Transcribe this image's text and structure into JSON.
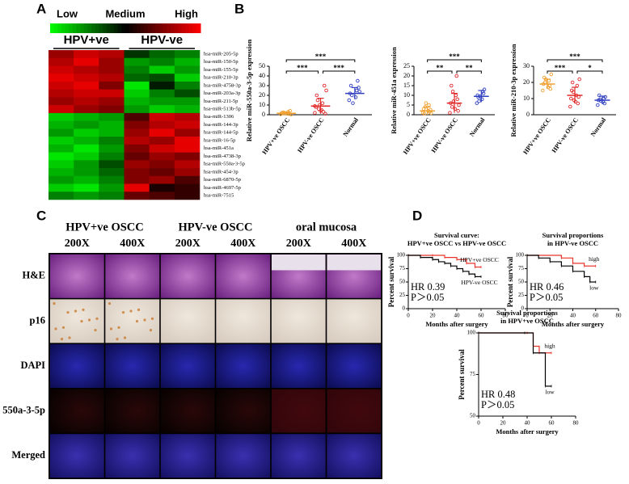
{
  "panel_labels": [
    "A",
    "B",
    "C",
    "D"
  ],
  "chart_data": [
    {
      "type": "heatmap",
      "scale_labels": [
        "Low",
        "Medium",
        "High"
      ],
      "groups": [
        "HPV+ve",
        "HPV-ve"
      ],
      "colors": [
        "#00ff00",
        "#000000",
        "#ff0000"
      ],
      "zlim": [
        -1,
        1
      ],
      "rows": [
        "hsa-miR-205-5p",
        "hsa-miR-150-5p",
        "hsa-miR-155-5p",
        "hsa-miR-210-3p",
        "hsa-miR-4758-3p",
        "hsa-miR-203a-3p",
        "hsa-miR-211-5p",
        "hsa-miR-513b-5p",
        "hsa-miR-1306",
        "hsa-miR-144-3p",
        "hsa-miR-144-5p",
        "hsa-miR-16-5p",
        "hsa-miR-451a",
        "hsa-miR-4738-3p",
        "hsa-miR-550a-3-5p",
        "hsa-miR-454-3p",
        "hsa-miR-6870-5p",
        "hsa-miR-4697-5p",
        "hsa-miR-7515"
      ],
      "values": [
        [
          0.6,
          0.8,
          0.7,
          -0.2,
          -0.4,
          -0.5
        ],
        [
          0.7,
          0.9,
          0.6,
          -0.6,
          -0.5,
          -0.7
        ],
        [
          0.8,
          0.7,
          0.6,
          -0.5,
          -0.8,
          -0.6
        ],
        [
          0.9,
          0.8,
          0.7,
          -0.4,
          -0.3,
          -0.8
        ],
        [
          0.8,
          0.9,
          0.5,
          -0.9,
          -0.1,
          -0.5
        ],
        [
          0.7,
          0.8,
          0.8,
          -0.8,
          -0.5,
          -0.3
        ],
        [
          0.6,
          0.7,
          0.6,
          -0.7,
          -0.6,
          -0.6
        ],
        [
          0.8,
          0.6,
          0.5,
          -0.6,
          -0.8,
          -0.7
        ],
        [
          -0.8,
          -0.7,
          -0.6,
          0.3,
          0.8,
          0.7
        ],
        [
          -0.7,
          -0.6,
          -0.7,
          0.5,
          0.7,
          0.8
        ],
        [
          -0.6,
          -0.8,
          -0.7,
          0.6,
          0.9,
          0.6
        ],
        [
          -0.8,
          -0.7,
          -0.5,
          0.7,
          0.6,
          0.9
        ],
        [
          -0.7,
          -0.9,
          -0.6,
          0.5,
          0.8,
          0.9
        ],
        [
          -0.9,
          -0.8,
          -0.5,
          0.4,
          0.6,
          0.5
        ],
        [
          -0.8,
          -0.6,
          -0.3,
          0.6,
          0.5,
          0.7
        ],
        [
          -0.7,
          -0.6,
          -0.4,
          0.5,
          0.4,
          0.6
        ],
        [
          -0.6,
          -0.7,
          -0.5,
          0.5,
          0.6,
          0.3
        ],
        [
          -0.8,
          -0.9,
          -0.6,
          0.9,
          0.1,
          0.2
        ],
        [
          -0.5,
          -0.6,
          -0.5,
          0.4,
          0.3,
          0.2
        ]
      ]
    },
    {
      "type": "dot",
      "ylabel": "Relative miR-550a-3-5p expression",
      "categories": [
        "HPV+ve OSCC",
        "HPV-ve OSCC",
        "Normal"
      ],
      "colors": [
        "#f0a030",
        "#e02828",
        "#3040c0"
      ],
      "points": [
        [
          0.5,
          1,
          2,
          3,
          1.5,
          0.8,
          2.5,
          4,
          1.2,
          0.3
        ],
        [
          2,
          5,
          8,
          12,
          20,
          3,
          15,
          30,
          6,
          1,
          10,
          25,
          4,
          9
        ],
        [
          15,
          18,
          22,
          25,
          30,
          35,
          20,
          28,
          12,
          24
        ]
      ],
      "means": [
        1.5,
        9,
        22
      ],
      "sds": [
        1.5,
        8,
        6
      ],
      "ylim": [
        0,
        50
      ],
      "yticks": [
        0,
        10,
        20,
        30,
        40,
        50
      ],
      "significance": [
        "***",
        "***",
        "***"
      ]
    },
    {
      "type": "dot",
      "ylabel": "Relative miR-451a expression",
      "categories": [
        "HPV+ve OSCC",
        "HPV-ve OSCC",
        "Normal"
      ],
      "colors": [
        "#f0a030",
        "#e02828",
        "#3040c0"
      ],
      "points": [
        [
          1,
          2,
          3,
          5,
          0.5,
          1.5,
          4,
          2.5,
          6,
          0.8
        ],
        [
          1,
          3,
          6,
          10,
          15,
          20,
          4,
          8,
          12,
          2,
          7,
          5
        ],
        [
          6,
          8,
          10,
          12,
          9,
          11,
          7,
          13,
          9.5
        ]
      ],
      "means": [
        2,
        6,
        9.5
      ],
      "sds": [
        2,
        5,
        3
      ],
      "ylim": [
        0,
        25
      ],
      "yticks": [
        0,
        5,
        10,
        15,
        20,
        25
      ],
      "significance": [
        "***",
        "**",
        "**"
      ]
    },
    {
      "type": "dot",
      "ylabel": "Relative miR-210-3p expression",
      "categories": [
        "HPV+ve OSCC",
        "HPV-ve OSCC",
        "Normal"
      ],
      "colors": [
        "#f0a030",
        "#e02828",
        "#3040c0"
      ],
      "points": [
        [
          15,
          17,
          19,
          21,
          23,
          18,
          20,
          16,
          22,
          25
        ],
        [
          5,
          8,
          10,
          12,
          15,
          18,
          20,
          7,
          14,
          11,
          9,
          22
        ],
        [
          6,
          8,
          9,
          10,
          12,
          7,
          9.5,
          11,
          8.5
        ]
      ],
      "means": [
        19,
        12,
        9
      ],
      "sds": [
        3,
        5,
        2.5
      ],
      "ylim": [
        0,
        30
      ],
      "yticks": [
        0,
        10,
        20,
        30
      ],
      "significance": [
        "***",
        "***",
        "*"
      ]
    },
    {
      "type": "survival",
      "title": [
        "Survival curve:",
        "HPV+ve OSCC vs HPV-ve OSCC"
      ],
      "xlabel": "Months after surgery",
      "ylabel": "Percent survival",
      "xlim": [
        0,
        80
      ],
      "xticks": [
        0,
        20,
        40,
        60,
        80
      ],
      "ylim": [
        0,
        100
      ],
      "yticks": [
        0,
        25,
        50,
        75,
        100
      ],
      "annotations": [
        "HR 0.39",
        "P＞0.05"
      ],
      "series": [
        {
          "name": "HPV+ve OSCC",
          "color": "#e8342a",
          "x": [
            0,
            20,
            30,
            40,
            48,
            55,
            60
          ],
          "y": [
            100,
            100,
            96,
            92,
            85,
            78,
            78
          ]
        },
        {
          "name": "HPV-ve OSCC",
          "color": "#000000",
          "x": [
            0,
            10,
            20,
            25,
            30,
            35,
            40,
            45,
            50,
            55,
            60
          ],
          "y": [
            100,
            96,
            92,
            88,
            85,
            80,
            75,
            70,
            65,
            60,
            60
          ]
        }
      ]
    },
    {
      "type": "survival",
      "title": [
        "Survival proportions",
        "in HPV-ve OSCC"
      ],
      "xlabel": "Months after surgery",
      "ylabel": "Percent survival",
      "xlim": [
        0,
        80
      ],
      "xticks": [
        0,
        20,
        40,
        60,
        80
      ],
      "ylim": [
        0,
        100
      ],
      "yticks": [
        0,
        25,
        50,
        75,
        100
      ],
      "annotations": [
        "HR 0.46",
        "P＞0.05"
      ],
      "series": [
        {
          "name": "high",
          "color": "#e8342a",
          "x": [
            0,
            30,
            40,
            50,
            60
          ],
          "y": [
            100,
            95,
            85,
            80,
            80
          ]
        },
        {
          "name": "low",
          "color": "#000000",
          "x": [
            0,
            10,
            20,
            30,
            40,
            50,
            55,
            60
          ],
          "y": [
            100,
            95,
            88,
            80,
            70,
            60,
            50,
            50
          ]
        }
      ]
    },
    {
      "type": "survival",
      "title": [
        "Survival proportions",
        "in HPV+ve OSCC"
      ],
      "xlabel": "Months after surgery",
      "ylabel": "Percent survival",
      "xlim": [
        0,
        80
      ],
      "xticks": [
        0,
        20,
        40,
        60,
        80
      ],
      "ylim": [
        50,
        100
      ],
      "yticks": [
        50,
        75,
        100
      ],
      "annotations": [
        "HR 0.48",
        "P＞0.05"
      ],
      "series": [
        {
          "name": "high",
          "color": "#e8342a",
          "x": [
            0,
            40,
            45,
            50,
            60
          ],
          "y": [
            100,
            100,
            92,
            88,
            88
          ]
        },
        {
          "name": "low",
          "color": "#000000",
          "x": [
            0,
            38,
            45,
            55,
            60
          ],
          "y": [
            100,
            100,
            88,
            68,
            68
          ]
        }
      ]
    }
  ],
  "image_grid": {
    "columns": [
      "HPV+ve OSCC",
      "HPV-ve OSCC",
      "oral mucosa"
    ],
    "magnifications": [
      "200X",
      "400X",
      "200X",
      "400X",
      "200X",
      "400X"
    ],
    "rows": [
      "H&E",
      "p16",
      "DAPI",
      "550a-3-5p",
      "Merged"
    ]
  }
}
